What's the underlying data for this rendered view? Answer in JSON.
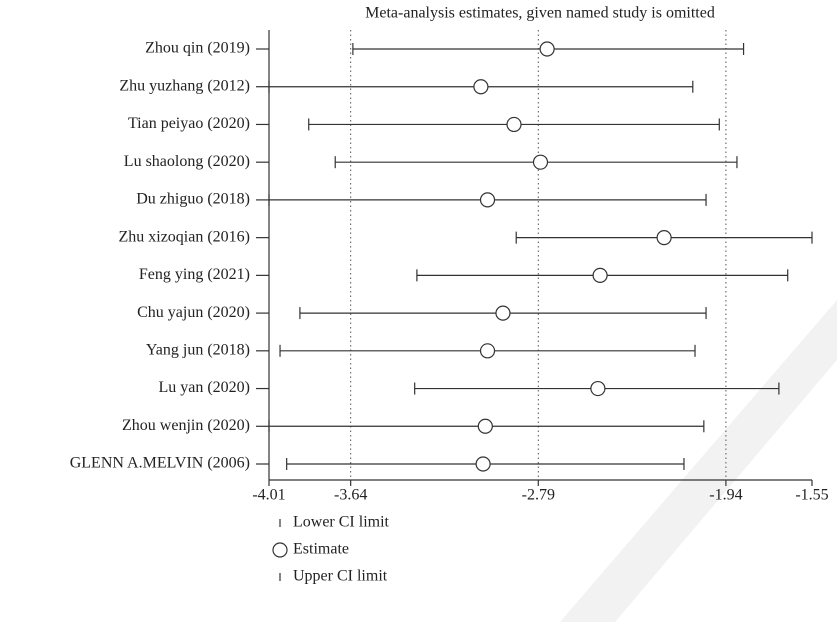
{
  "chart_data": {
    "type": "interval",
    "title": "Meta-analysis estimates, given named study is omitted",
    "categories": [
      "Zhou qin (2019)",
      "Zhu yuzhang (2012)",
      "Tian peiyao (2020)",
      "Lu shaolong (2020)",
      "Du zhiguo (2018)",
      "Zhu xizoqian (2016)",
      "Feng ying (2021)",
      "Chu yajun (2020)",
      "Yang jun (2018)",
      "Lu yan (2020)",
      "Zhou wenjin (2020)",
      "GLENN A.MELVIN (2006)"
    ],
    "series": [
      {
        "name": "Lower CI limit",
        "values": [
          -3.63,
          -4.01,
          -3.83,
          -3.71,
          -4.01,
          -2.89,
          -3.34,
          -3.87,
          -3.96,
          -3.35,
          -4.01,
          -3.93
        ]
      },
      {
        "name": "Estimate",
        "values": [
          -2.75,
          -3.05,
          -2.9,
          -2.78,
          -3.02,
          -2.22,
          -2.51,
          -2.95,
          -3.02,
          -2.52,
          -3.03,
          -3.04
        ]
      },
      {
        "name": "Upper CI limit",
        "values": [
          -1.86,
          -2.09,
          -1.97,
          -1.89,
          -2.03,
          -1.55,
          -1.66,
          -2.03,
          -2.08,
          -1.7,
          -2.04,
          -2.13
        ]
      }
    ],
    "xlim": [
      -4.01,
      -1.55
    ],
    "xticks": [
      -4.01,
      -3.64,
      -2.79,
      -1.94,
      -1.55
    ],
    "reference_lines": [
      -3.64,
      -2.79,
      -1.94
    ]
  }
}
